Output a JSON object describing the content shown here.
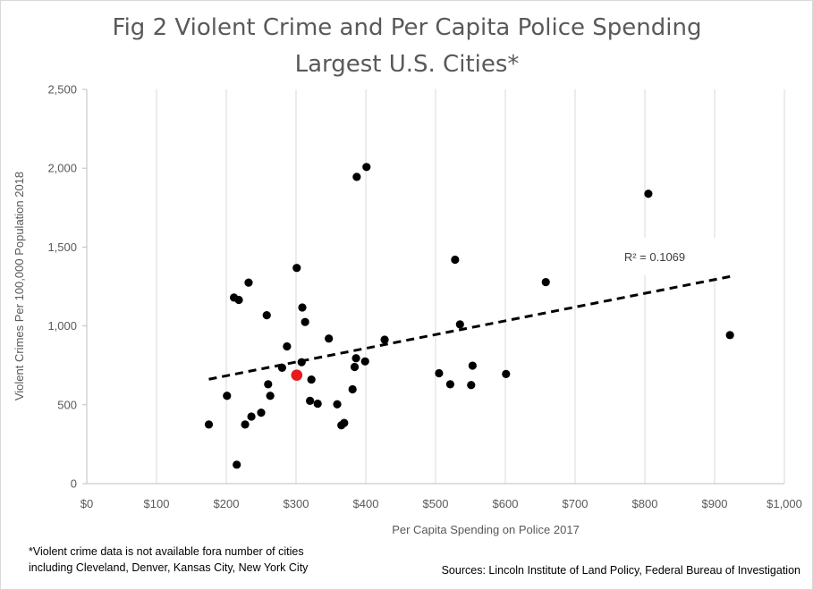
{
  "chart_data": {
    "type": "scatter",
    "title_lines": [
      "Fig 2 Violent Crime and Per Capita Police Spending",
      "Largest U.S. Cities*"
    ],
    "xlabel": "Per Capita Spending  on Police 2017",
    "ylabel": "Violent Crimes Per 100,000 Population 2018",
    "xlim": [
      0,
      1000
    ],
    "ylim": [
      0,
      2500
    ],
    "x_ticks": [
      0,
      100,
      200,
      300,
      400,
      500,
      600,
      700,
      800,
      900,
      1000
    ],
    "x_tick_labels": [
      "$0",
      "$100",
      "$200",
      "$300",
      "$400",
      "$500",
      "$600",
      "$700",
      "$800",
      "$900",
      "$1,000"
    ],
    "y_ticks": [
      0,
      500,
      1000,
      1500,
      2000,
      2500
    ],
    "y_tick_labels": [
      "0",
      "500",
      "1,000",
      "1,500",
      "2,000",
      "2,500"
    ],
    "grid": "vertical gridlines",
    "points": [
      [
        175,
        375
      ],
      [
        201,
        557
      ],
      [
        211,
        1180
      ],
      [
        215,
        120
      ],
      [
        218,
        1165
      ],
      [
        227,
        375
      ],
      [
        232,
        1275
      ],
      [
        236,
        425
      ],
      [
        250,
        450
      ],
      [
        258,
        1068
      ],
      [
        260,
        630
      ],
      [
        263,
        557
      ],
      [
        280,
        735
      ],
      [
        287,
        870
      ],
      [
        301,
        1368
      ],
      [
        308,
        770
      ],
      [
        309,
        1117
      ],
      [
        313,
        1025
      ],
      [
        320,
        525
      ],
      [
        322,
        660
      ],
      [
        331,
        507
      ],
      [
        347,
        920
      ],
      [
        359,
        503
      ],
      [
        365,
        370
      ],
      [
        369,
        385
      ],
      [
        381,
        598
      ],
      [
        384,
        740
      ],
      [
        386,
        795
      ],
      [
        387,
        1945
      ],
      [
        399,
        775
      ],
      [
        401,
        2008
      ],
      [
        427,
        913
      ],
      [
        505,
        700
      ],
      [
        521,
        630
      ],
      [
        528,
        1420
      ],
      [
        535,
        1010
      ],
      [
        551,
        625
      ],
      [
        553,
        748
      ],
      [
        601,
        695
      ],
      [
        658,
        1278
      ],
      [
        805,
        1838
      ],
      [
        922,
        942
      ]
    ],
    "highlight_point": [
      301,
      688
    ],
    "point_color": "#000000",
    "highlight_color": "#e8191c",
    "trendline": {
      "style": "dashed linear",
      "x_range": [
        175,
        922
      ],
      "y_range": [
        662,
        1313
      ]
    },
    "annotation": {
      "text": "R² = 0.1069"
    }
  },
  "footnote": [
    "*Violent crime data is not available fora number of cities",
    "including Cleveland, Denver, Kansas City, New York City"
  ],
  "sources": "Sources: Lincoln Institute of Land Policy, Federal Bureau of Investigation"
}
